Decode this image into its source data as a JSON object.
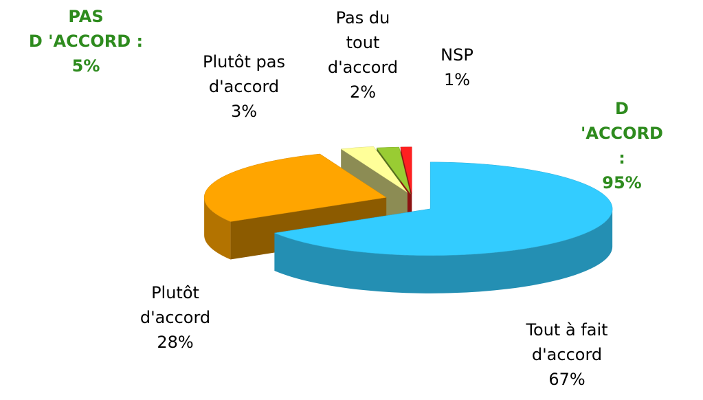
{
  "chart_data": {
    "type": "pie",
    "categories": [
      "Tout à fait\nd'accord",
      "Plutôt\nd'accord",
      "Plutôt pas\nd'accord",
      "Pas du\ntout\nd'accord",
      "NSP"
    ],
    "values": [
      67,
      28,
      3,
      2,
      1
    ],
    "value_labels": [
      "67%",
      "28%",
      "3%",
      "2%",
      "1%"
    ],
    "colors": [
      "#33ccff",
      "#ffa500",
      "#ffff99",
      "#99cc33",
      "#ff2020"
    ],
    "annotations": [
      "PAS\nD 'ACCORD :\n5%",
      "D 'ACCORD :\n95%"
    ]
  }
}
